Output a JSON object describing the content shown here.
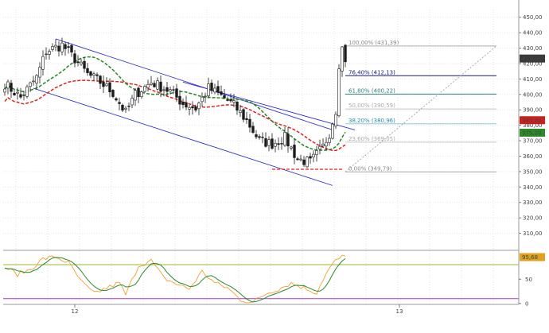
{
  "chart_data": {
    "type": "candlestick",
    "price_axis": {
      "range": [
        300,
        455
      ],
      "ticks": [
        310,
        320,
        330,
        340,
        350,
        360,
        370,
        380,
        390,
        400,
        410,
        420,
        430,
        440,
        450
      ],
      "tick_labels": [
        "310,00",
        "320,00",
        "330,00",
        "340,00",
        "350,00",
        "360,00",
        "370,00",
        "380,00",
        "390,00",
        "400,00",
        "410,00",
        "420,00",
        "430,00",
        "440,00",
        "450,00"
      ]
    },
    "price_tags": [
      {
        "label": "423,25",
        "value": 423.25,
        "color": "#3a3a3a"
      },
      {
        "label": "383,30",
        "value": 383.3,
        "color": "#cc1f1f"
      },
      {
        "label": "375,20",
        "value": 375.2,
        "color": "#2a8a2a"
      }
    ],
    "fibonacci_levels": [
      {
        "label": "100,00% (431,39)",
        "value": 431.39,
        "color": "#aaaaaa",
        "text_color": "#888888"
      },
      {
        "label": "76,40% (412,13)",
        "value": 412.13,
        "color": "#1a1a6e",
        "text_color": "#1a1a6e"
      },
      {
        "label": "61,80% (400,22)",
        "value": 400.22,
        "color": "#2a7f7f",
        "text_color": "#2a7f7f"
      },
      {
        "label": "50,00% (390,59)",
        "value": 390.59,
        "color": "#c8c8c8",
        "text_color": "#aaaaaa"
      },
      {
        "label": "38,20% (380,96)",
        "value": 380.96,
        "color": "#88cce0",
        "text_color": "#2a8aa8"
      },
      {
        "label": "23,60% (369,05)",
        "value": 369.05,
        "color": "#c8c8c8",
        "text_color": "#aaaaaa"
      },
      {
        "label": "0,00% (349,79)",
        "value": 349.79,
        "color": "#aaaaaa",
        "text_color": "#888888"
      }
    ],
    "oscillator": {
      "ticks": [
        0,
        50
      ],
      "tick_labels": [
        "0",
        "50"
      ],
      "upper_band": 80,
      "lower_band": 10,
      "upper_band_color": "#99bb33",
      "lower_band_color": "#aa33cc",
      "value_tag": {
        "label": "95,68",
        "value": 95.68,
        "color": "#e0a020"
      }
    },
    "moving_averages": [
      {
        "color": "#dd2222",
        "style": "dashed"
      },
      {
        "color": "#228822",
        "style": "dashed"
      }
    ],
    "channel_color": "#3333cc",
    "candle_color": "#1a1a1a",
    "x_ticks": [
      {
        "label": "12",
        "index": 22
      },
      {
        "label": "13",
        "index": 124
      }
    ],
    "candles_seed": {
      "count": 108,
      "waypoints": [
        [
          0,
          407
        ],
        [
          5,
          398
        ],
        [
          10,
          411
        ],
        [
          13,
          428
        ],
        [
          18,
          432
        ],
        [
          22,
          423
        ],
        [
          26,
          413
        ],
        [
          30,
          408
        ],
        [
          34,
          401
        ],
        [
          38,
          388
        ],
        [
          41,
          400
        ],
        [
          46,
          408
        ],
        [
          52,
          402
        ],
        [
          56,
          394
        ],
        [
          60,
          391
        ],
        [
          64,
          404
        ],
        [
          68,
          399
        ],
        [
          72,
          393
        ],
        [
          76,
          383
        ],
        [
          80,
          370
        ],
        [
          84,
          368
        ],
        [
          88,
          372
        ],
        [
          92,
          358
        ],
        [
          96,
          356
        ],
        [
          100,
          366
        ],
        [
          102,
          375
        ],
        [
          104,
          390
        ],
        [
          105,
          420
        ],
        [
          106,
          430
        ],
        [
          107,
          423
        ]
      ]
    },
    "oscillator_seed": {
      "stoch_waypoints": [
        [
          0,
          75
        ],
        [
          4,
          60
        ],
        [
          8,
          70
        ],
        [
          12,
          92
        ],
        [
          16,
          96
        ],
        [
          20,
          84
        ],
        [
          24,
          45
        ],
        [
          28,
          20
        ],
        [
          32,
          32
        ],
        [
          36,
          42
        ],
        [
          38,
          18
        ],
        [
          42,
          78
        ],
        [
          46,
          88
        ],
        [
          50,
          52
        ],
        [
          54,
          40
        ],
        [
          58,
          30
        ],
        [
          62,
          66
        ],
        [
          66,
          42
        ],
        [
          70,
          32
        ],
        [
          74,
          8
        ],
        [
          78,
          2
        ],
        [
          82,
          20
        ],
        [
          86,
          30
        ],
        [
          90,
          42
        ],
        [
          94,
          32
        ],
        [
          98,
          22
        ],
        [
          100,
          50
        ],
        [
          102,
          72
        ],
        [
          104,
          88
        ],
        [
          106,
          96
        ],
        [
          107,
          96
        ]
      ],
      "signal_smoothing": 4
    }
  }
}
